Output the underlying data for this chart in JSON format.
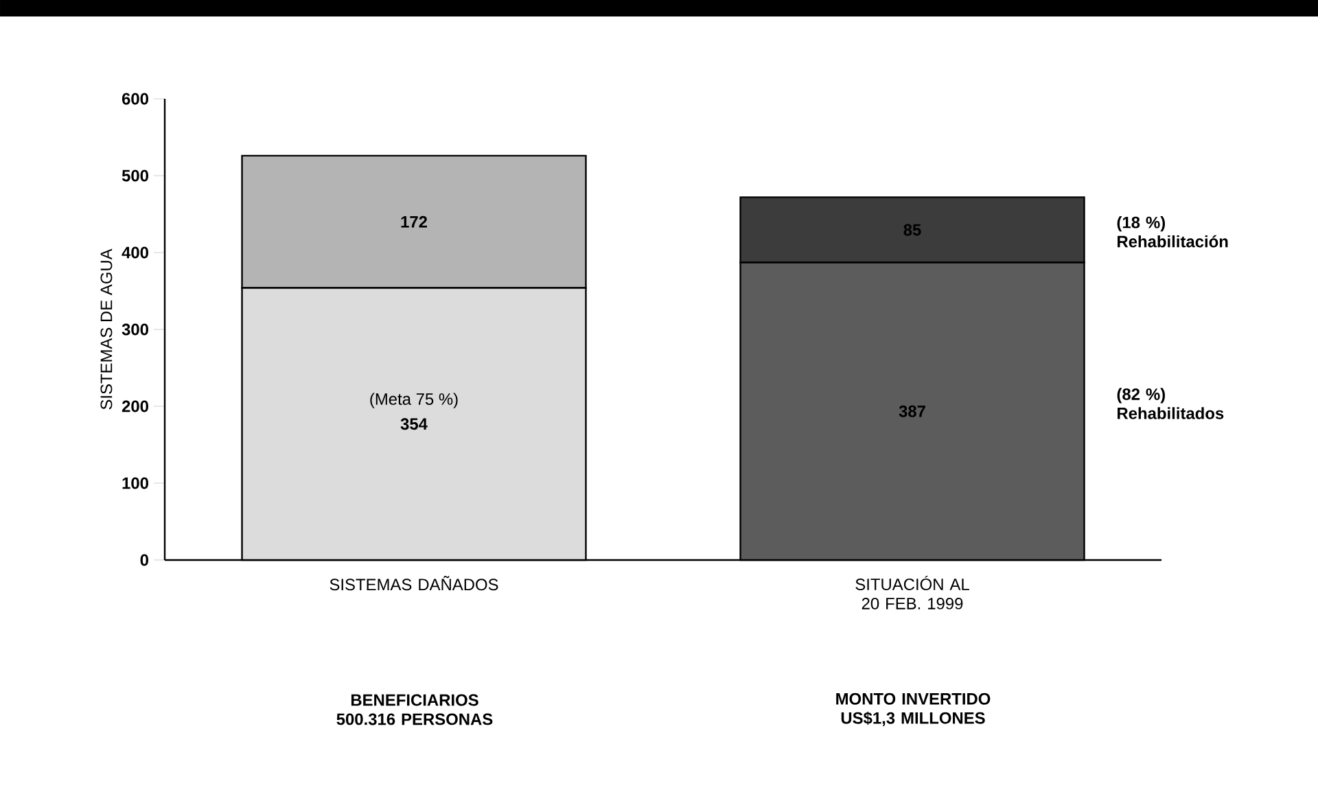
{
  "chart_data": {
    "type": "bar",
    "stacked": true,
    "data_labels": true,
    "ylabel": "SISTEMAS DE AGUA",
    "categories": [
      "SISTEMAS DAÑADOS",
      "SITUACIÓN AL 20 FEB. 1999"
    ],
    "series": [
      {
        "values": [
          354,
          387
        ],
        "colors": [
          "#dcdcdc",
          "#5c5c5c"
        ]
      },
      {
        "values": [
          172,
          85
        ],
        "colors": [
          "#b4b4b4",
          "#3c3c3c"
        ]
      }
    ],
    "ylim": [
      0,
      600
    ],
    "yticks": [
      0,
      100,
      200,
      300,
      400,
      500,
      600
    ],
    "annotations": [
      "(Meta 75 %)",
      "(18 %) Rehabilitación",
      "(82 %) Rehabilitados",
      "BENEFICIARIOS 500.316 PERSONAS",
      "MONTO INVERTIDO US$1,3 MILLONES"
    ]
  }
}
